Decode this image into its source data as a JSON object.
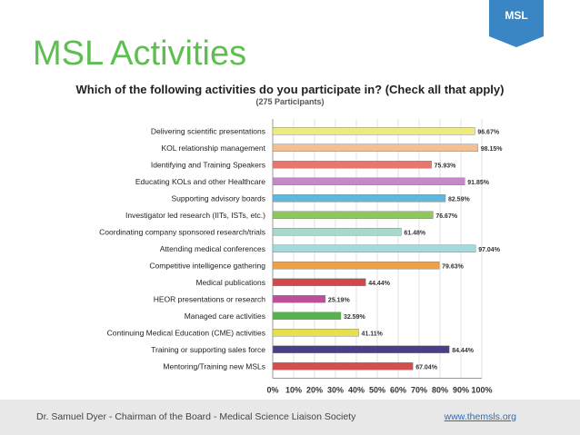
{
  "badge": {
    "label": "MSL"
  },
  "header": {
    "title": "MSL Activities"
  },
  "chart_data": {
    "type": "bar",
    "orientation": "horizontal",
    "title": "Which of the following activities do you participate in? (Check all that apply)",
    "subtitle": "(275 Participants)",
    "categories": [
      "Delivering scientific presentations",
      "KOL relationship management",
      "Identifying and Training Speakers",
      "Educating KOLs and other Healthcare",
      "Supporting advisory boards",
      "Investigator led research (IITs, ISTs, etc.)",
      "Coordinating company sponsored research/trials",
      "Attending medical conferences",
      "Competitive intelligence gathering",
      "Medical publications",
      "HEOR presentations or research",
      "Managed care activities",
      "Continuing Medical Education (CME) activities",
      "Training or supporting sales force",
      "Mentoring/Training new MSLs"
    ],
    "values": [
      96.67,
      98.15,
      75.93,
      91.85,
      82.59,
      76.67,
      61.48,
      97.04,
      79.63,
      44.44,
      25.19,
      32.59,
      41.11,
      84.44,
      67.04
    ],
    "value_labels": [
      "96.67%",
      "98.15%",
      "75.93%",
      "91.85%",
      "82.59%",
      "76.67%",
      "61.48%",
      "97.04%",
      "79.63%",
      "44.44%",
      "25.19%",
      "32.59%",
      "41.11%",
      "84.44%",
      "67.04%"
    ],
    "colors": [
      "#eeeb7a",
      "#f4c08f",
      "#e8776b",
      "#c48ac8",
      "#5bb8e0",
      "#8cc85a",
      "#a8d8c8",
      "#a4dadb",
      "#f0a040",
      "#d04848",
      "#b8509a",
      "#58b050",
      "#e8e048",
      "#4a3d8c",
      "#d05050"
    ],
    "xlim": [
      0,
      100
    ],
    "ticks": [
      "0%",
      "10%",
      "20%",
      "30%",
      "40%",
      "50%",
      "60%",
      "70%",
      "80%",
      "90%",
      "100%"
    ],
    "grid": true
  },
  "footer": {
    "text": "Dr. Samuel Dyer - Chairman of the Board - Medical Science Liaison Society",
    "link": "www.themsls.org"
  }
}
